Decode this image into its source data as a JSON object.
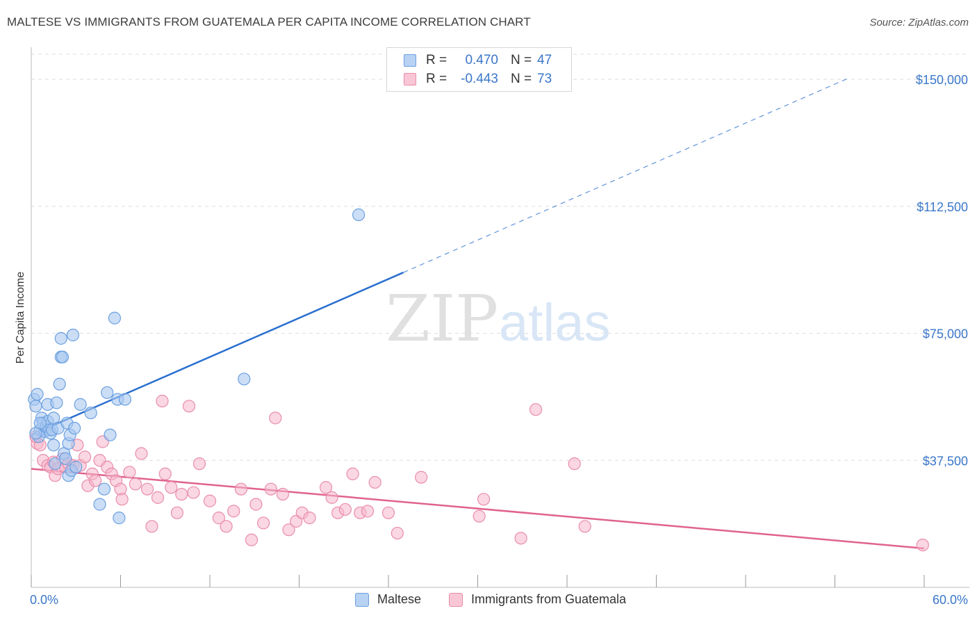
{
  "header": {
    "title": "MALTESE VS IMMIGRANTS FROM GUATEMALA PER CAPITA INCOME CORRELATION CHART",
    "source": "Source: ZipAtlas.com"
  },
  "watermark": {
    "zip": "ZIP",
    "atlas": "atlas"
  },
  "legend": {
    "maltese": {
      "r_label": "R =",
      "r_value": "0.470",
      "n_label": "N =",
      "n_value": "47"
    },
    "guatemala": {
      "r_label": "R =",
      "r_value": "-0.443",
      "n_label": "N =",
      "n_value": "73"
    }
  },
  "bottom_legend": {
    "maltese": "Maltese",
    "guatemala": "Immigrants from Guatemala"
  },
  "colors": {
    "blue_fill": "#a9c8f0",
    "blue_stroke": "#6c9fe0",
    "blue_line": "#2a6fcf",
    "pink_fill": "#f6b6cb",
    "pink_stroke": "#e98caa",
    "pink_line": "#e0628f",
    "grid": "#dddddd",
    "tick_text": "#3a77c9"
  },
  "chart_data": {
    "type": "scatter",
    "title": "MALTESE VS IMMIGRANTS FROM GUATEMALA PER CAPITA INCOME CORRELATION CHART",
    "xlabel": "",
    "ylabel": "Per Capita Income",
    "xlim": [
      0,
      60
    ],
    "ylim": [
      0,
      157000
    ],
    "x_tick_labels": [
      "0.0%",
      "60.0%"
    ],
    "y_ticks": [
      37500,
      75000,
      112500,
      150000
    ],
    "y_tick_labels": [
      "$37,500",
      "$75,000",
      "$112,500",
      "$150,000"
    ],
    "series": [
      {
        "name": "Maltese",
        "r": 0.47,
        "n": 47,
        "trend": {
          "x0": 0,
          "y0": 45000,
          "x_solid_end": 25,
          "x1": 55,
          "y1": 150500
        },
        "points": [
          [
            0.2,
            55500
          ],
          [
            0.3,
            53500
          ],
          [
            0.4,
            57000
          ],
          [
            0.5,
            44500
          ],
          [
            0.6,
            46500
          ],
          [
            0.7,
            50000
          ],
          [
            0.8,
            48500
          ],
          [
            0.9,
            46000
          ],
          [
            1.0,
            47500
          ],
          [
            1.1,
            49000
          ],
          [
            1.1,
            54000
          ],
          [
            1.2,
            46500
          ],
          [
            1.3,
            45500
          ],
          [
            1.4,
            46500
          ],
          [
            1.5,
            42000
          ],
          [
            1.5,
            50000
          ],
          [
            1.6,
            36500
          ],
          [
            1.7,
            54500
          ],
          [
            1.8,
            47000
          ],
          [
            1.9,
            60000
          ],
          [
            2.0,
            73500
          ],
          [
            2.0,
            68000
          ],
          [
            2.1,
            68000
          ],
          [
            2.2,
            39500
          ],
          [
            2.3,
            38000
          ],
          [
            2.4,
            48500
          ],
          [
            2.5,
            42500
          ],
          [
            2.5,
            33000
          ],
          [
            2.6,
            45000
          ],
          [
            2.7,
            34500
          ],
          [
            2.8,
            74500
          ],
          [
            2.9,
            47000
          ],
          [
            3.0,
            35500
          ],
          [
            3.3,
            54000
          ],
          [
            4.0,
            51500
          ],
          [
            4.6,
            24500
          ],
          [
            4.9,
            29000
          ],
          [
            5.1,
            57500
          ],
          [
            5.3,
            45000
          ],
          [
            5.6,
            79500
          ],
          [
            5.8,
            55500
          ],
          [
            5.9,
            20500
          ],
          [
            6.3,
            55500
          ],
          [
            22.0,
            110000
          ],
          [
            14.3,
            61500
          ],
          [
            0.3,
            45500
          ],
          [
            0.6,
            48500
          ]
        ]
      },
      {
        "name": "Immigrants from Guatemala",
        "r": -0.443,
        "n": 73,
        "trend": {
          "x0": 0,
          "y0": 35000,
          "x1": 60,
          "y1": 11500
        },
        "points": [
          [
            0.4,
            42500
          ],
          [
            0.6,
            42000
          ],
          [
            0.8,
            37500
          ],
          [
            1.1,
            36000
          ],
          [
            1.3,
            35500
          ],
          [
            1.5,
            37000
          ],
          [
            1.6,
            33000
          ],
          [
            1.8,
            35000
          ],
          [
            2.1,
            38000
          ],
          [
            2.3,
            35500
          ],
          [
            2.5,
            36500
          ],
          [
            2.8,
            36000
          ],
          [
            3.1,
            42000
          ],
          [
            3.3,
            36000
          ],
          [
            3.6,
            38500
          ],
          [
            3.8,
            30000
          ],
          [
            4.1,
            33500
          ],
          [
            4.3,
            31500
          ],
          [
            4.6,
            37500
          ],
          [
            4.8,
            43000
          ],
          [
            5.1,
            35500
          ],
          [
            5.4,
            33500
          ],
          [
            5.7,
            31500
          ],
          [
            6.0,
            29000
          ],
          [
            6.1,
            26000
          ],
          [
            6.6,
            34000
          ],
          [
            7.0,
            30500
          ],
          [
            7.4,
            39500
          ],
          [
            7.8,
            29000
          ],
          [
            8.1,
            18000
          ],
          [
            8.5,
            26500
          ],
          [
            8.8,
            55000
          ],
          [
            9.0,
            33500
          ],
          [
            9.4,
            29500
          ],
          [
            9.8,
            22000
          ],
          [
            10.1,
            27500
          ],
          [
            10.6,
            53500
          ],
          [
            10.9,
            28000
          ],
          [
            11.3,
            36500
          ],
          [
            12.0,
            25500
          ],
          [
            12.6,
            20500
          ],
          [
            13.1,
            18000
          ],
          [
            13.6,
            22500
          ],
          [
            14.1,
            29000
          ],
          [
            14.8,
            14000
          ],
          [
            15.1,
            24500
          ],
          [
            15.6,
            19000
          ],
          [
            16.1,
            29000
          ],
          [
            16.4,
            50000
          ],
          [
            16.9,
            27500
          ],
          [
            17.3,
            17000
          ],
          [
            17.8,
            19500
          ],
          [
            18.2,
            22000
          ],
          [
            18.7,
            20500
          ],
          [
            19.8,
            29500
          ],
          [
            20.2,
            26500
          ],
          [
            20.6,
            22000
          ],
          [
            21.1,
            23000
          ],
          [
            21.6,
            33500
          ],
          [
            22.1,
            22000
          ],
          [
            22.6,
            22500
          ],
          [
            23.1,
            31000
          ],
          [
            24.0,
            22000
          ],
          [
            24.6,
            16000
          ],
          [
            26.2,
            32500
          ],
          [
            30.1,
            21000
          ],
          [
            30.4,
            26000
          ],
          [
            32.9,
            14500
          ],
          [
            33.9,
            52500
          ],
          [
            36.5,
            36500
          ],
          [
            37.2,
            18000
          ],
          [
            59.9,
            12500
          ],
          [
            0.3,
            44500
          ]
        ]
      }
    ]
  }
}
